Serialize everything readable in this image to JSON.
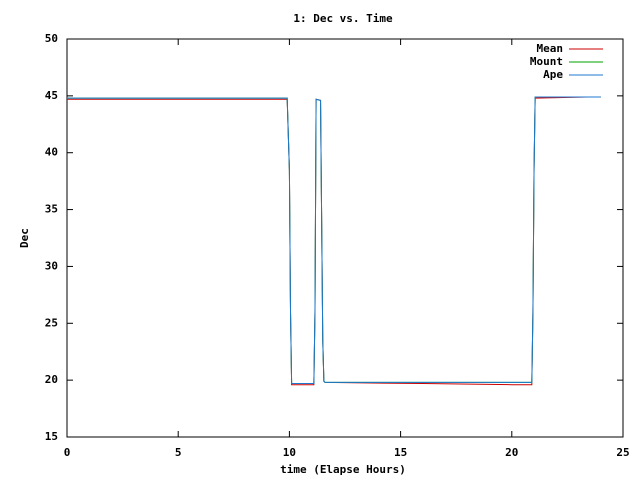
{
  "chart_data": {
    "type": "line",
    "title": "1: Dec vs. Time",
    "x_label": "time (Elapse Hours)",
    "y_label": "Dec",
    "x": [
      0,
      2.4,
      9.2,
      9.9,
      10.0,
      10.05,
      10.1,
      11.1,
      11.15,
      11.2,
      11.4,
      11.5,
      11.55,
      11.6,
      16,
      20,
      20.9,
      20.95,
      21.0,
      21.05,
      23.4,
      24
    ],
    "series": [
      {
        "name": "Mean",
        "color": "#cc0000",
        "values": [
          44.7,
          44.7,
          44.7,
          44.7,
          38.5,
          26,
          19.6,
          19.6,
          26,
          44.7,
          44.6,
          23.5,
          19.9,
          19.8,
          19.7,
          19.6,
          19.6,
          26,
          38.5,
          44.8,
          44.9,
          44.9
        ]
      },
      {
        "name": "Mount",
        "color": "#00a000",
        "values": [
          44.8,
          44.8,
          44.8,
          44.8,
          38.5,
          26,
          19.7,
          19.7,
          26,
          44.7,
          44.6,
          23.5,
          19.9,
          19.8,
          19.8,
          19.8,
          19.8,
          26,
          38.5,
          44.9,
          44.9,
          44.9
        ]
      },
      {
        "name": "Ape",
        "color": "#1f77d0",
        "values": [
          44.8,
          44.8,
          44.8,
          44.8,
          38.5,
          26,
          19.7,
          19.7,
          26,
          44.7,
          44.6,
          23.5,
          19.9,
          19.8,
          19.8,
          19.8,
          19.8,
          26,
          38.5,
          44.9,
          44.9,
          44.9
        ]
      }
    ],
    "xlim": [
      0,
      25
    ],
    "xticks": [
      0,
      5,
      10,
      15,
      20,
      25
    ],
    "ylim": [
      15,
      50
    ],
    "yticks": [
      15,
      20,
      25,
      30,
      35,
      40,
      45,
      50
    ],
    "grid": false,
    "legend": "top-right"
  }
}
